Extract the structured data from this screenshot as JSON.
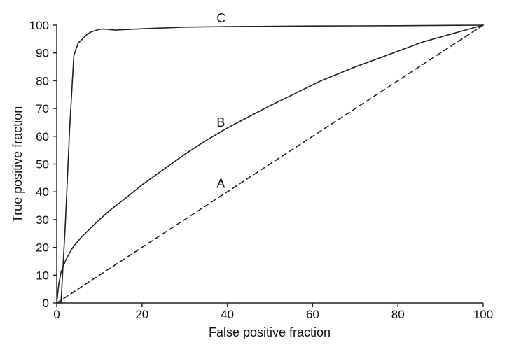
{
  "chart_data": {
    "type": "line",
    "title": "",
    "xlabel": "False positive fraction",
    "ylabel": "True positive fraction",
    "xlim": [
      0,
      100
    ],
    "ylim": [
      0,
      100
    ],
    "xticks": [
      0,
      20,
      40,
      60,
      80,
      100
    ],
    "yticks": [
      0,
      10,
      20,
      30,
      40,
      50,
      60,
      70,
      80,
      90,
      100
    ],
    "grid": false,
    "series": [
      {
        "name": "A",
        "style": "dashed",
        "x": [
          0,
          100
        ],
        "y": [
          0,
          100
        ]
      },
      {
        "name": "B",
        "style": "solid",
        "x": [
          0,
          0.5,
          1,
          2,
          3,
          4,
          6,
          8,
          10,
          13,
          16,
          20,
          25,
          30,
          35,
          40,
          45,
          50,
          56,
          62,
          70,
          78,
          86,
          93,
          100
        ],
        "y": [
          0,
          7,
          11,
          15,
          18,
          20.5,
          24,
          27,
          30,
          34,
          37.5,
          42.5,
          48,
          53.5,
          58.5,
          63,
          67,
          71,
          75.5,
          80,
          85,
          89.5,
          94,
          97,
          100
        ]
      },
      {
        "name": "C",
        "style": "solid",
        "x": [
          0,
          1,
          2,
          3,
          4,
          5,
          6,
          7,
          8,
          9,
          10,
          11,
          12,
          13,
          14,
          15,
          20,
          30,
          40,
          60,
          80,
          100
        ],
        "y": [
          0,
          0,
          28,
          62,
          89,
          93.5,
          95,
          96.5,
          97.5,
          98,
          98.5,
          98.6,
          98.5,
          98.3,
          98.2,
          98.3,
          98.7,
          99.3,
          99.5,
          99.7,
          99.8,
          100
        ]
      }
    ],
    "annotations": [
      {
        "text": "A",
        "x": 37,
        "y": 43
      },
      {
        "text": "B",
        "x": 37,
        "y": 65
      },
      {
        "text": "C",
        "x": 37,
        "y": 102.5
      }
    ]
  }
}
